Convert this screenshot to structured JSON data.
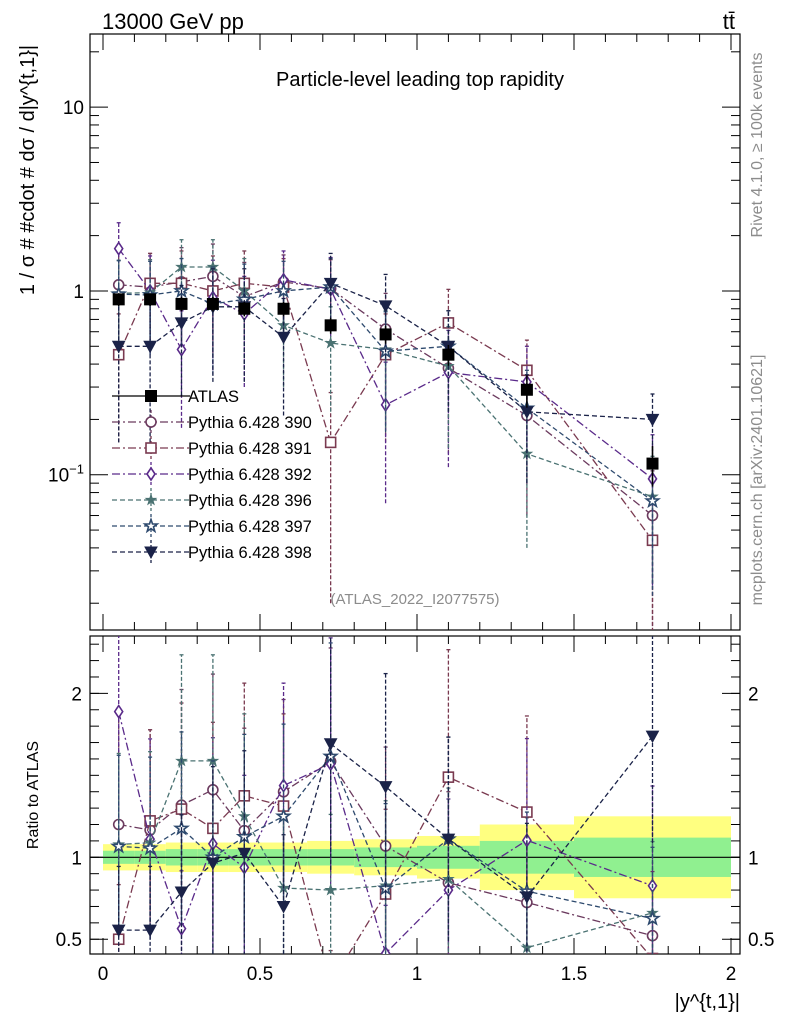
{
  "header": {
    "energy_label": "13000 GeV pp",
    "process_label": "tt̄"
  },
  "chart_data": {
    "type": "scatter",
    "title": "Particle-level leading top rapidity",
    "xlabel": "|y^{t,1}|",
    "ylabel": "1 / σ # #cdot # dσ / d|y^{t,1}|",
    "ratio_ylabel": "Ratio to ATLAS",
    "yscale": "log",
    "xlim": [
      0,
      2
    ],
    "ylim": [
      0.0143,
      25
    ],
    "ratio_ylim": [
      0.41,
      2.35
    ],
    "x_ticks": [
      "0",
      "0.5",
      "1",
      "1.5",
      "2"
    ],
    "y_ticks": [
      "10^{−1}",
      "1",
      "10"
    ],
    "ratio_ticks": [
      "0.5",
      "1",
      "2"
    ],
    "analysis_tag": "(ATLAS_2022_I2077575)",
    "side_label_top": "Rivet 4.1.0, ≥ 100k events",
    "side_label_bottom": "mcplots.cern.ch [arXiv:2401.10621]",
    "x": [
      0.05,
      0.15,
      0.25,
      0.35,
      0.45,
      0.575,
      0.725,
      0.9,
      1.1,
      1.35,
      1.75
    ],
    "x_halfwidth": [
      0.05,
      0.05,
      0.05,
      0.05,
      0.05,
      0.075,
      0.075,
      0.1,
      0.1,
      0.15,
      0.25
    ],
    "data": {
      "name": "ATLAS",
      "values": [
        0.9,
        0.9,
        0.85,
        0.85,
        0.8,
        0.8,
        0.65,
        0.58,
        0.45,
        0.29,
        0.115
      ],
      "ratio_band_stat": [
        0.04,
        0.04,
        0.05,
        0.05,
        0.05,
        0.05,
        0.05,
        0.06,
        0.07,
        0.1,
        0.12
      ],
      "ratio_band_total": [
        0.08,
        0.08,
        0.09,
        0.09,
        0.09,
        0.09,
        0.1,
        0.11,
        0.13,
        0.2,
        0.25
      ]
    },
    "series": [
      {
        "name": "Pythia 6.428 390",
        "marker": "circle-open",
        "color": "#6b3a5e",
        "dash": "8 3 2 3",
        "values": [
          1.08,
          1.05,
          1.12,
          1.2,
          0.93,
          1.12,
          1.03,
          0.62,
          0.38,
          0.21,
          0.06
        ],
        "errors": [
          0.6,
          0.55,
          0.6,
          0.6,
          0.5,
          0.45,
          0.45,
          0.35,
          0.25,
          0.15,
          0.045
        ]
      },
      {
        "name": "Pythia 6.428 391",
        "marker": "square-open",
        "color": "#7a3a50",
        "dash": "8 3 2 3",
        "values": [
          0.45,
          1.1,
          1.1,
          1.0,
          1.1,
          1.05,
          0.15,
          0.45,
          0.67,
          0.37,
          0.044
        ],
        "errors": [
          0.3,
          0.5,
          0.55,
          0.55,
          0.55,
          0.45,
          0.13,
          0.3,
          0.35,
          0.17,
          0.03
        ]
      },
      {
        "name": "Pythia 6.428 392",
        "marker": "diamond-open",
        "color": "#5a2a8a",
        "dash": "8 3 2 3",
        "values": [
          1.7,
          1.0,
          0.48,
          0.92,
          0.75,
          1.15,
          1.02,
          0.24,
          0.36,
          0.32,
          0.095
        ],
        "errors": [
          0.65,
          0.55,
          0.3,
          0.55,
          0.45,
          0.5,
          0.5,
          0.17,
          0.25,
          0.18,
          0.07
        ]
      },
      {
        "name": "Pythia 6.428 396",
        "marker": "star-small",
        "color": "#4a7272",
        "dash": "5 3",
        "values": [
          0.97,
          0.98,
          1.35,
          1.35,
          1.0,
          0.65,
          0.52,
          0.48,
          0.39,
          0.13,
          0.076
        ],
        "errors": [
          0.5,
          0.5,
          0.55,
          0.55,
          0.5,
          0.35,
          0.3,
          0.3,
          0.25,
          0.09,
          0.05
        ]
      },
      {
        "name": "Pythia 6.428 397",
        "marker": "star-open",
        "color": "#2e4a6e",
        "dash": "5 3",
        "values": [
          0.96,
          0.95,
          1.0,
          0.85,
          0.9,
          1.0,
          1.05,
          0.47,
          0.5,
          0.23,
          0.072
        ],
        "errors": [
          0.5,
          0.5,
          0.5,
          0.5,
          0.5,
          0.45,
          0.45,
          0.3,
          0.28,
          0.14,
          0.05
        ]
      },
      {
        "name": "Pythia 6.428 398",
        "marker": "triangle-down",
        "color": "#1a2248",
        "dash": "5 3",
        "values": [
          0.5,
          0.5,
          0.67,
          0.82,
          0.82,
          0.56,
          1.1,
          0.83,
          0.5,
          0.22,
          0.2
        ],
        "errors": [
          0.35,
          0.35,
          0.4,
          0.5,
          0.5,
          0.35,
          0.5,
          0.4,
          0.28,
          0.13,
          0.075
        ]
      }
    ]
  }
}
